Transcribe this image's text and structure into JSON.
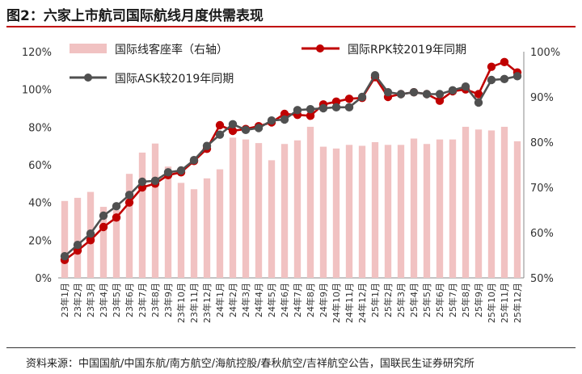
{
  "title": "图2：六家上市航司国际航线月度供需表现",
  "source": "资料来源：中国国航/中国东航/南方航空/海航控股/春秋航空/吉祥航空公告，国联民生证券研究所",
  "colors": {
    "bar": "#f1c2c2",
    "rpk": "#c00000",
    "ask": "#505050",
    "accent": "#c00000"
  },
  "chart_data": {
    "type": "bar+line",
    "categories": [
      "23年1月",
      "23年2月",
      "23年3月",
      "23年4月",
      "23年5月",
      "23年6月",
      "23年7月",
      "23年8月",
      "23年9月",
      "23年10月",
      "23年11月",
      "23年12月",
      "24年1月",
      "24年2月",
      "24年3月",
      "24年4月",
      "24年5月",
      "24年6月",
      "24年7月",
      "24年8月",
      "24年9月",
      "24年10月",
      "24年11月",
      "24年12月",
      "25年1月",
      "25年2月",
      "25年3月",
      "25年4月",
      "25年5月",
      "25年6月",
      "25年7月",
      "25年8月",
      "25年9月",
      "25年10月",
      "25年11月",
      "25年12月"
    ],
    "left_axis": {
      "ticks": [
        "0%",
        "20%",
        "40%",
        "60%",
        "80%",
        "100%",
        "120%"
      ],
      "range": [
        0,
        120
      ]
    },
    "right_axis": {
      "ticks": [
        "50%",
        "60%",
        "70%",
        "80%",
        "90%",
        "100%"
      ],
      "range": [
        50,
        100
      ]
    },
    "series": [
      {
        "name": "国际线客座率（右轴）",
        "type": "bar",
        "axis": "right",
        "values": [
          67,
          67.7,
          69,
          65.7,
          65,
          73,
          77.7,
          79.7,
          74.6,
          71,
          69.6,
          72,
          74,
          81,
          80.6,
          79.8,
          76,
          79.6,
          80.4,
          83.4,
          79,
          78.6,
          79.4,
          79.2,
          80,
          79.4,
          79.4,
          80.8,
          79.6,
          80.6,
          80.6,
          83.4,
          82.8,
          82.6,
          83.4,
          80.2
        ]
      },
      {
        "name": "国际RPK较2019年同期",
        "type": "line",
        "axis": "left",
        "values": [
          9.5,
          14.5,
          20,
          27,
          32,
          40,
          48,
          50,
          54.5,
          56,
          62,
          68.5,
          81,
          78,
          79,
          80.5,
          82.5,
          87,
          86.5,
          86,
          92,
          93.5,
          95,
          95.5,
          106.5,
          96,
          97.5,
          98.5,
          97.5,
          94,
          99,
          100,
          97.5,
          112,
          114.5,
          109
        ]
      },
      {
        "name": "国际ASK较2019年同期",
        "type": "line",
        "axis": "left",
        "values": [
          11.5,
          17.5,
          23.5,
          33,
          38,
          44,
          51,
          51.5,
          56,
          57,
          62.5,
          70,
          76,
          81.5,
          78.5,
          79.5,
          83.5,
          84,
          89,
          89.5,
          90,
          90.5,
          90.5,
          96,
          107.5,
          98.5,
          97.5,
          98.5,
          97.5,
          97.5,
          99.5,
          101.5,
          93,
          105,
          105.5,
          107
        ]
      }
    ]
  }
}
